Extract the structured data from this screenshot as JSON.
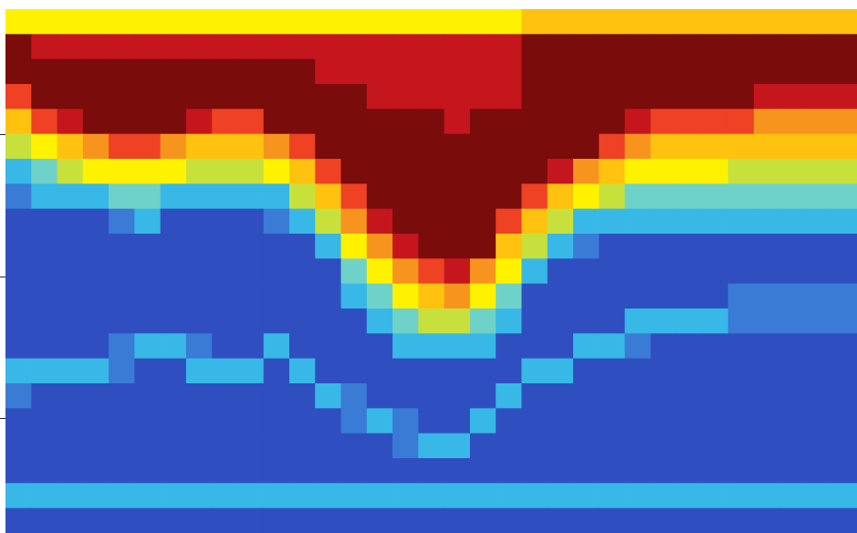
{
  "chart_data": {
    "type": "heatmap",
    "title": "",
    "xlabel": "",
    "ylabel": "",
    "grid": false,
    "legend": "none",
    "axes_visible": false,
    "colormap": [
      "#1f2f98",
      "#2f4fc1",
      "#3a7bd5",
      "#37b8e6",
      "#6fd2c8",
      "#c8e03c",
      "#fff200",
      "#ffc20e",
      "#f7941d",
      "#ef4123",
      "#c4161c",
      "#7a0c0c"
    ],
    "n_columns": 33,
    "n_rows": 21,
    "bands": {
      "x": [
        0,
        1,
        2,
        3,
        4,
        5,
        6,
        7,
        8,
        9,
        10,
        11,
        12,
        13,
        14,
        15,
        16,
        17,
        18,
        19,
        20,
        21,
        22,
        23,
        24,
        25,
        26,
        27,
        28,
        29,
        30,
        31,
        32
      ],
      "surface_bottom": [
        0.11,
        0.17,
        0.21,
        0.22,
        0.24,
        0.24,
        0.23,
        0.21,
        0.2,
        0.2,
        0.21,
        0.24,
        0.28,
        0.33,
        0.39,
        0.44,
        0.48,
        0.49,
        0.45,
        0.38,
        0.33,
        0.3,
        0.27,
        0.22,
        0.2,
        0.19,
        0.18,
        0.18,
        0.17,
        0.16,
        0.16,
        0.15,
        0.15
      ],
      "warm_bottom": [
        0.3,
        0.32,
        0.33,
        0.34,
        0.36,
        0.37,
        0.36,
        0.34,
        0.33,
        0.34,
        0.35,
        0.39,
        0.44,
        0.51,
        0.57,
        0.62,
        0.64,
        0.64,
        0.62,
        0.55,
        0.47,
        0.43,
        0.4,
        0.38,
        0.37,
        0.37,
        0.37,
        0.37,
        0.37,
        0.37,
        0.37,
        0.37,
        0.37
      ],
      "lower_ridge": [
        0.71,
        0.71,
        0.7,
        0.69,
        0.67,
        0.66,
        0.63,
        0.66,
        0.7,
        0.68,
        0.65,
        0.69,
        0.73,
        0.76,
        0.79,
        0.81,
        0.84,
        0.83,
        0.79,
        0.74,
        0.7,
        0.67,
        0.65,
        0.63,
        0.61,
        0.6,
        0.59,
        0.58,
        0.57,
        0.57,
        0.57,
        0.57,
        0.57
      ]
    },
    "peak_value": 1.0,
    "min_value": 0.0
  }
}
